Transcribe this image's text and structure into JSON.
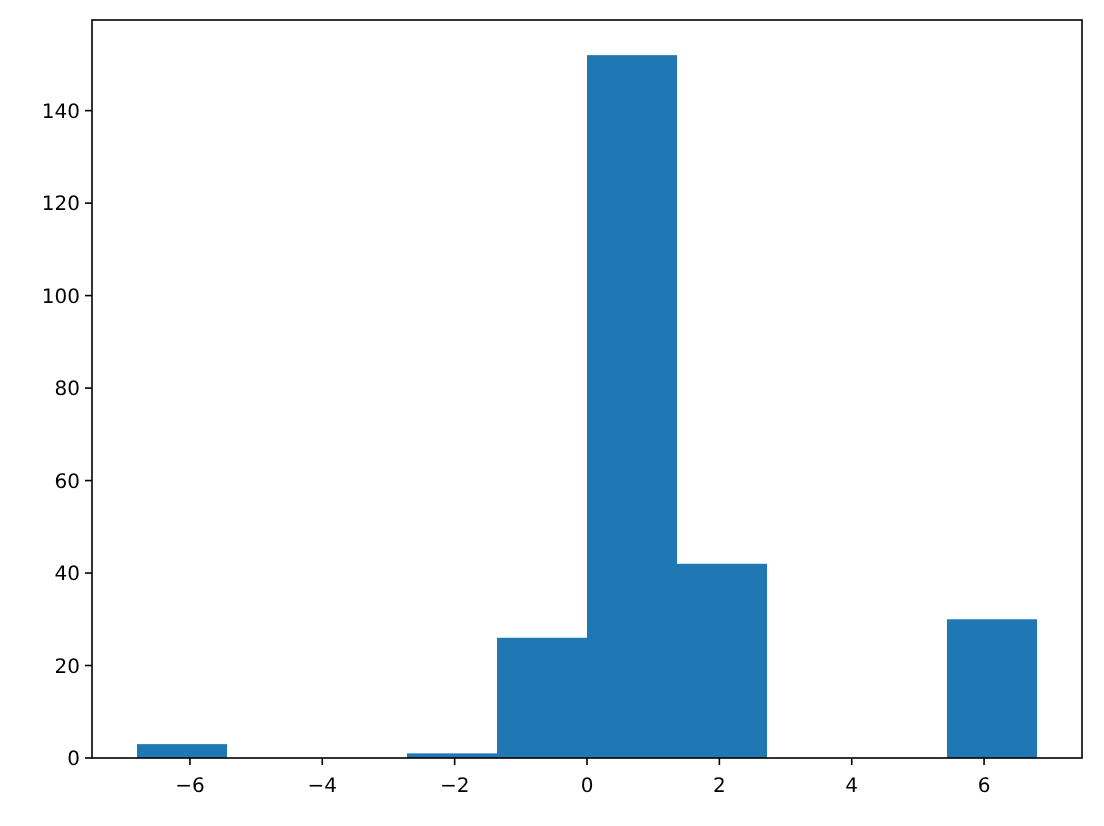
{
  "chart_data": {
    "type": "histogram",
    "bins": [
      -6.8,
      -5.44,
      -4.08,
      -2.72,
      -1.36,
      0,
      1.36,
      2.72,
      4.08,
      5.44,
      6.8
    ],
    "values": [
      3,
      0,
      0,
      1,
      26,
      152,
      42,
      0,
      0,
      30
    ],
    "color": "#1f77b4",
    "xlim": [
      -7.48,
      7.48
    ],
    "xticks": [
      {
        "value": -6,
        "label": "−6"
      },
      {
        "value": -4,
        "label": "−4"
      },
      {
        "value": -2,
        "label": "−2"
      },
      0,
      2,
      4,
      6
    ],
    "ylim": [
      0,
      159.6
    ],
    "yticks": [
      0,
      20,
      40,
      60,
      80,
      100,
      120,
      140
    ]
  }
}
